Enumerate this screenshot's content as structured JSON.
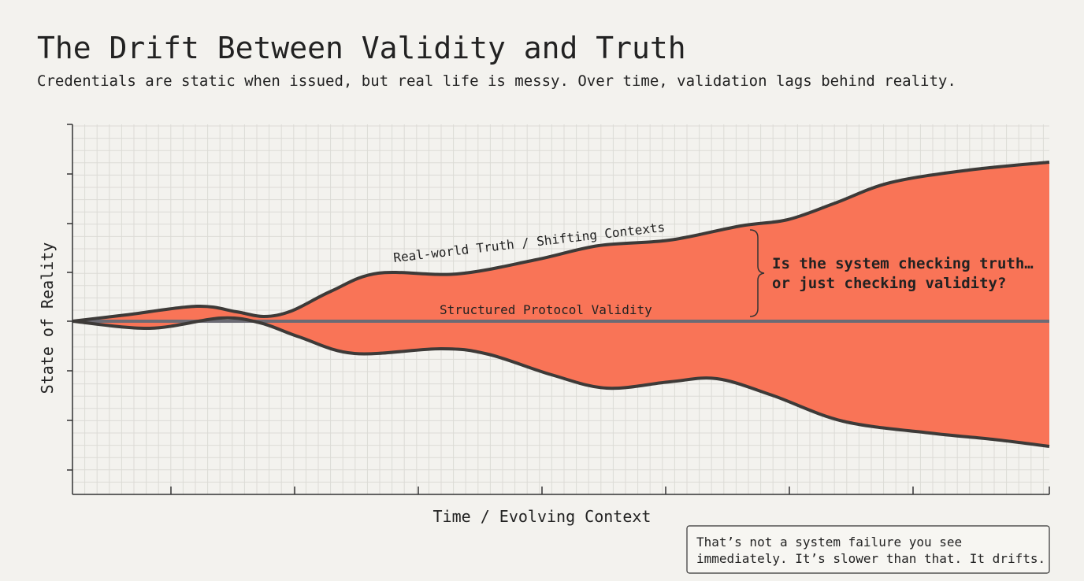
{
  "header": {
    "title": "The Drift Between Validity and Truth",
    "subtitle": "Credentials are static when issued, but real life is messy. Over time, validation lags behind reality."
  },
  "diagram": {
    "y_axis_label": "State of Reality",
    "x_axis_label": "Time / Evolving Context",
    "upper_curve_label": "Real-world Truth / Shifting Contexts",
    "baseline_label": "Structured Protocol Validity",
    "callout": [
      "Is the system checking truth…",
      "or just checking validity?"
    ]
  },
  "note": [
    "That’s not a system failure you see",
    "immediately. It’s slower than that. It drifts."
  ]
}
